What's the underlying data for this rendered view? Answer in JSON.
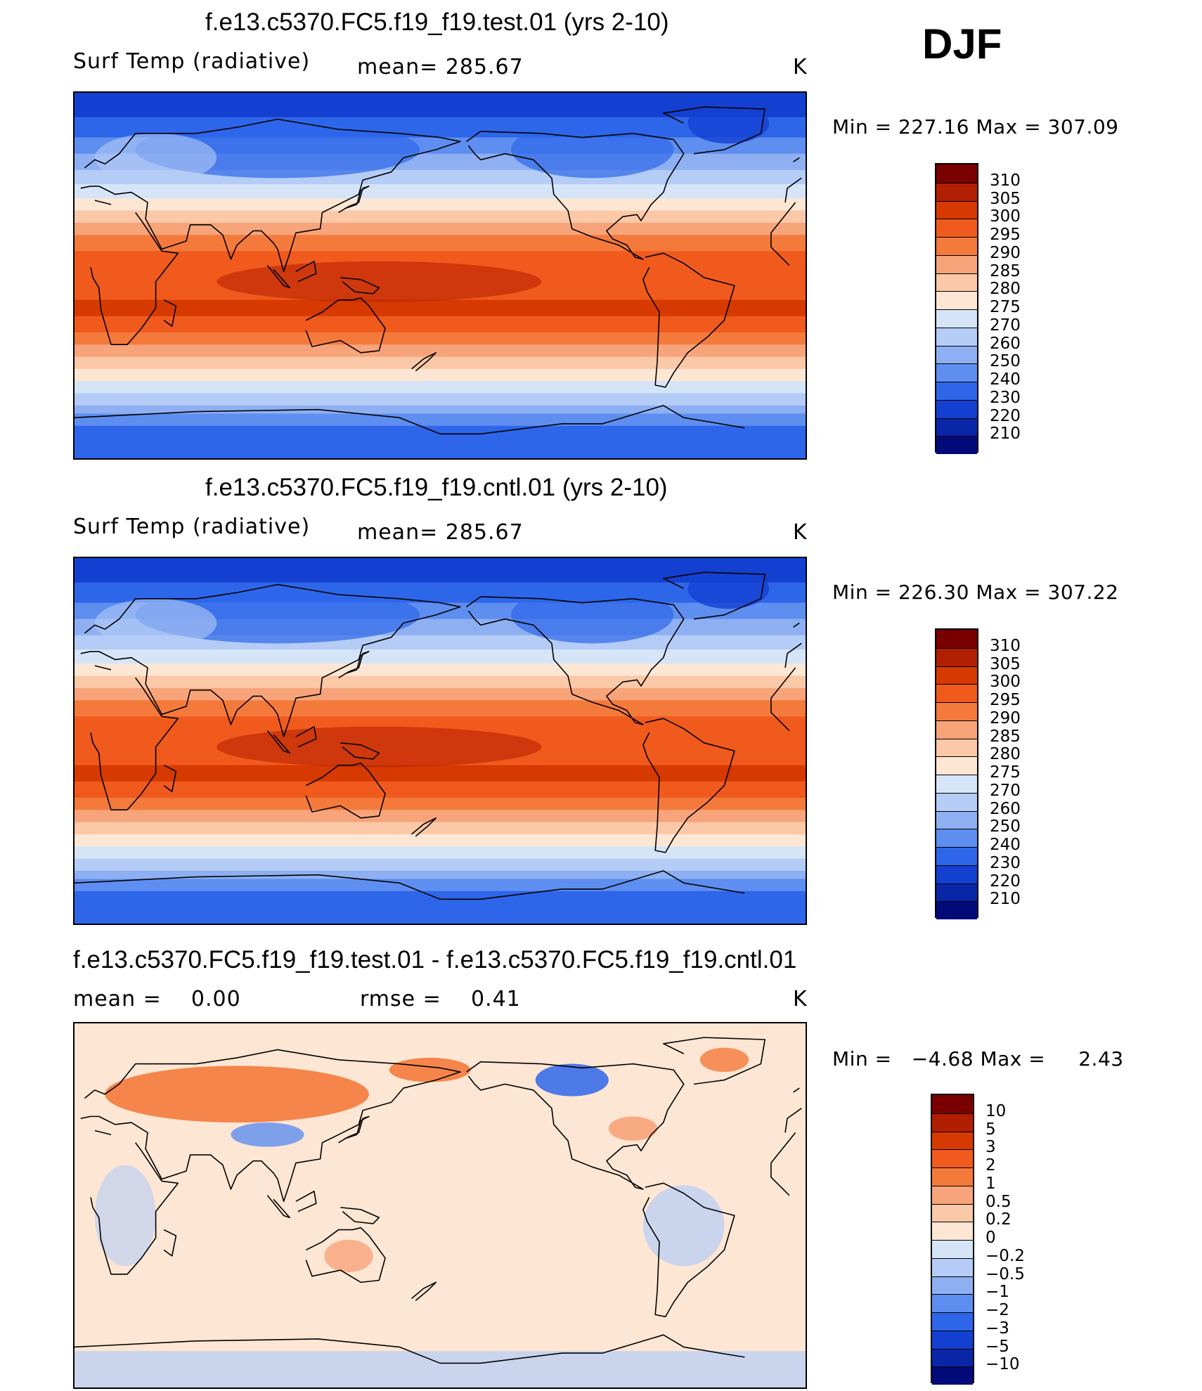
{
  "season": "DJF",
  "panels": [
    {
      "title": "f.e13.c5370.FC5.f19_f19.test.01 (yrs 2-10)",
      "left_label": "Surf Temp (radiative)",
      "center_label": "mean= 285.67",
      "units": "K",
      "stats": {
        "min_label": "Min",
        "min": "227.16",
        "max_label": "Max",
        "max": "307.09"
      },
      "kind": "abs"
    },
    {
      "title": "f.e13.c5370.FC5.f19_f19.cntl.01 (yrs 2-10)",
      "left_label": "Surf Temp (radiative)",
      "center_label": "mean= 285.67",
      "units": "K",
      "stats": {
        "min_label": "Min",
        "min": "226.30",
        "max_label": "Max",
        "max": "307.22"
      },
      "kind": "abs"
    },
    {
      "title": "f.e13.c5370.FC5.f19_f19.test.01 - f.e13.c5370.FC5.f19_f19.cntl.01",
      "left_label": "mean =",
      "left_value": "0.00",
      "center_label": "rmse =",
      "center_value": "0.41",
      "units": "K",
      "stats": {
        "min_label": "Min",
        "min": "−4.68",
        "max_label": "Max",
        "max": "2.43"
      },
      "kind": "diff"
    }
  ],
  "abs_colorbar": {
    "labels": [
      "310",
      "305",
      "300",
      "295",
      "290",
      "285",
      "280",
      "275",
      "270",
      "260",
      "250",
      "240",
      "230",
      "220",
      "210"
    ],
    "colors": [
      "#7a0000",
      "#b21e00",
      "#d63a00",
      "#f05a1c",
      "#f47a3c",
      "#f7a47a",
      "#fbc8a8",
      "#fde6d4",
      "#d6e4f8",
      "#b4ccf6",
      "#8eb0f2",
      "#5e8ef0",
      "#2e66ea",
      "#1440d2",
      "#0a26a8",
      "#020a7a"
    ]
  },
  "diff_colorbar": {
    "labels": [
      "10",
      "5",
      "3",
      "2",
      "1",
      "0.5",
      "0.2",
      "0",
      "−0.2",
      "−0.5",
      "−1",
      "−2",
      "−3",
      "−5",
      "−10"
    ],
    "colors": [
      "#7a0000",
      "#b21e00",
      "#d63a00",
      "#f05a1c",
      "#f47a3c",
      "#f7a47a",
      "#fbc8a8",
      "#fde6d4",
      "#d6e4f8",
      "#b4ccf6",
      "#8eb0f2",
      "#5e8ef0",
      "#2e66ea",
      "#1440d2",
      "#0a26a8",
      "#020a7a"
    ]
  }
}
